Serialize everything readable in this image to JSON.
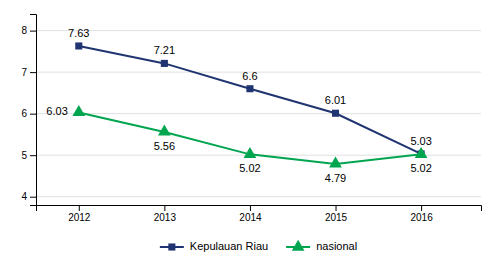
{
  "chart_data": {
    "type": "line",
    "x": [
      2012,
      2013,
      2014,
      2015,
      2016
    ],
    "xlim": [
      2011.5,
      2016.7
    ],
    "xticks": [
      2012,
      2013,
      2014,
      2015,
      2016
    ],
    "ylim": [
      3.8,
      8.4
    ],
    "yticks": [
      4,
      5,
      6,
      7,
      8
    ],
    "grid": true,
    "data_labels": true,
    "legend": "bottom",
    "series": [
      {
        "name": "Kepulauan Riau",
        "color": "#1f3470",
        "marker": "square",
        "values": [
          7.63,
          7.21,
          6.6,
          6.01,
          5.03
        ]
      },
      {
        "name": "nasional",
        "color": "#00a550",
        "marker": "triangle",
        "values": [
          6.03,
          5.56,
          5.02,
          4.79,
          5.02
        ]
      }
    ]
  }
}
